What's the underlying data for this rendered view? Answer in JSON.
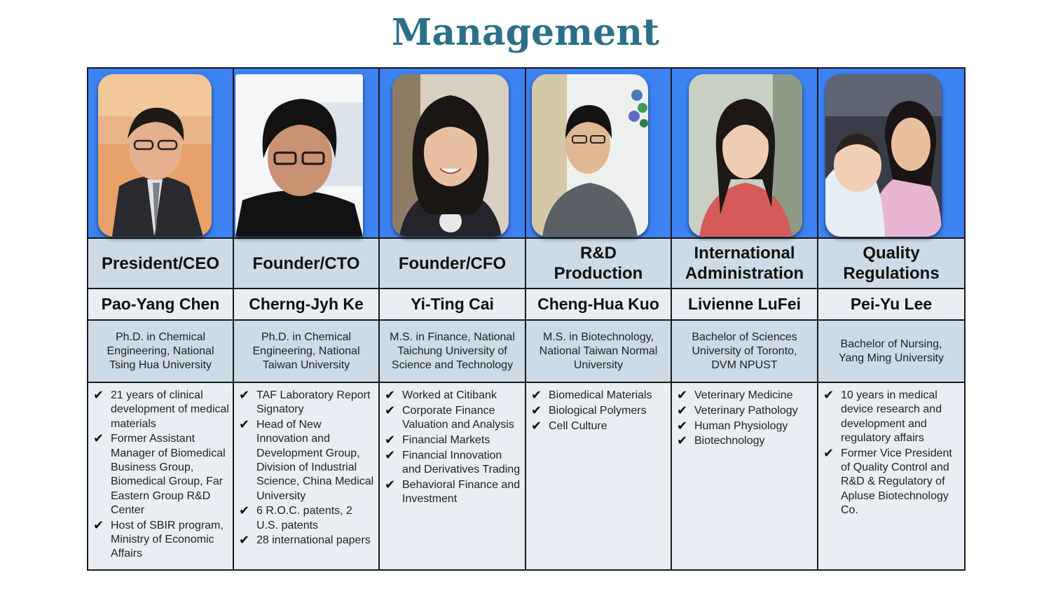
{
  "title": "Management",
  "people": [
    {
      "role": "President/CEO",
      "name": "Pao-Yang Chen",
      "education": "Ph.D. in Chemical Engineering, National Tsing Hua University",
      "highlights": [
        "21 years of clinical development of medical materials",
        "Former Assistant Manager of Biomedical Business Group, Biomedical Group, Far Eastern Group R&D Center",
        "Host of SBIR program, Ministry of Economic Affairs"
      ]
    },
    {
      "role": "Founder/CTO",
      "name": "Cherng-Jyh Ke",
      "education": "Ph.D. in Chemical Engineering, National Taiwan University",
      "highlights": [
        "TAF Laboratory Report Signatory",
        "Head of New Innovation and Development Group, Division of Industrial Science, China Medical University",
        "6 R.O.C. patents, 2 U.S. patents",
        "28 international papers"
      ]
    },
    {
      "role": "Founder/CFO",
      "name": "Yi-Ting Cai",
      "education": "M.S. in Finance, National Taichung University of Science and Technology",
      "highlights": [
        "Worked at Citibank",
        "Corporate Finance Valuation and Analysis",
        "Financial Markets",
        "Financial Innovation and Derivatives Trading",
        "Behavioral Finance and Investment"
      ]
    },
    {
      "role": "R&D Production",
      "name": "Cheng-Hua Kuo",
      "education": "M.S. in Biotechnology, National Taiwan Normal University",
      "highlights": [
        "Biomedical Materials",
        "Biological Polymers",
        "Cell Culture"
      ]
    },
    {
      "role": "International Administration",
      "name": "Livienne LuFei",
      "education": "Bachelor of Sciences University of Toronto, DVM NPUST",
      "highlights": [
        "Veterinary Medicine",
        "Veterinary Pathology",
        "Human Physiology",
        "Biotechnology"
      ]
    },
    {
      "role": "Quality Regulations",
      "name": "Pei-Yu Lee",
      "education": "Bachelor of Nursing, Yang Ming University",
      "highlights": [
        "10 years in medical device research and development and regulatory affairs",
        "Former Vice President of Quality Control and R&D & Regulatory of Apluse Biotechnology Co."
      ]
    }
  ],
  "check_glyph": "✔",
  "colors": {
    "title": "#2b7088",
    "photo_band": "#3d82f1",
    "header_fill": "#ccdbe6",
    "light_fill": "#e8eef3",
    "border": "#1a1a1a"
  }
}
